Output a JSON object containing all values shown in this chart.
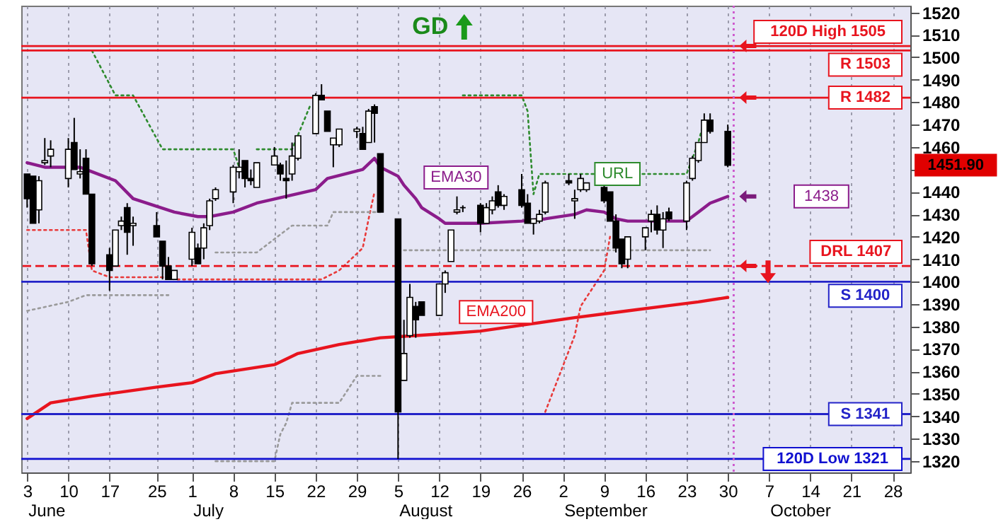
{
  "chart_data": {
    "type": "candlestick",
    "title": "GD",
    "x": [
      "--06-03",
      "--06-04",
      "--06-05",
      "--06-06",
      "--06-07",
      "--06-10",
      "--06-11",
      "--06-12",
      "--06-13",
      "--06-14",
      "--06-17",
      "--06-18",
      "--06-19",
      "--06-20",
      "--06-21",
      "--06-25",
      "--06-26",
      "--06-27",
      "--06-28",
      "--07-01",
      "--07-02",
      "--07-03",
      "--07-04",
      "--07-05",
      "--07-08",
      "--07-09",
      "--07-10",
      "--07-11",
      "--07-12",
      "--07-15",
      "--07-16",
      "--07-17",
      "--07-18",
      "--07-19",
      "--07-22",
      "--07-23",
      "--07-24",
      "--07-25",
      "--07-26",
      "--07-29",
      "--07-30",
      "--07-31",
      "--08-01",
      "--08-02",
      "--08-05",
      "--08-06",
      "--08-07",
      "--08-08",
      "--08-09",
      "--08-12",
      "--08-13",
      "--08-14",
      "--08-15",
      "--08-16",
      "--08-19",
      "--08-20",
      "--08-21",
      "--08-22",
      "--08-23",
      "--08-26",
      "--08-27",
      "--08-28",
      "--08-29",
      "--08-30",
      "--09-03",
      "--09-04",
      "--09-05",
      "--09-06",
      "--09-09",
      "--09-10",
      "--09-11",
      "--09-12",
      "--09-13",
      "--09-16",
      "--09-17",
      "--09-18",
      "--09-19",
      "--09-20",
      "--09-23",
      "--09-24",
      "--09-25",
      "--09-26",
      "--09-27",
      "--09-30"
    ],
    "ohlc": [
      [
        1448,
        1448,
        1433,
        1437
      ],
      [
        1447,
        1447,
        1426,
        1426
      ],
      [
        1432,
        1447,
        1426,
        1445
      ],
      [
        1453,
        1464,
        1452,
        1454
      ],
      [
        1456,
        1463,
        1451,
        1459
      ],
      [
        1446,
        1464,
        1442,
        1459
      ],
      [
        1462,
        1473,
        1450,
        1450
      ],
      [
        1448,
        1459,
        1446,
        1449
      ],
      [
        1455,
        1459,
        1439,
        1439
      ],
      [
        1439,
        1439,
        1407,
        1408
      ],
      [
        1412,
        1415,
        1396,
        1405
      ],
      [
        1407,
        1423,
        1407,
        1423
      ],
      [
        1425,
        1429,
        1423,
        1427
      ],
      [
        1433,
        1435,
        1412,
        1422
      ],
      [
        1425,
        1429,
        1416,
        1426
      ],
      [
        1425,
        1431,
        1420,
        1420
      ],
      [
        1418,
        1418,
        1401,
        1407
      ],
      [
        1407,
        1411,
        1401,
        1401
      ],
      [
        1401,
        1405,
        1401,
        1405
      ],
      [
        1410,
        1424,
        1407,
        1422
      ],
      [
        1415,
        1417,
        1408,
        1408
      ],
      [
        1415,
        1426,
        1410,
        1424
      ],
      [
        1425,
        1437,
        1423,
        1436
      ],
      [
        1437,
        1442,
        1436,
        1441
      ],
      [
        1440,
        1452,
        1435,
        1451
      ],
      [
        1449,
        1459,
        1446,
        1451
      ],
      [
        1454,
        1454,
        1442,
        1446
      ],
      [
        1446,
        1450,
        1443,
        1445
      ],
      [
        1442,
        1453,
        1442,
        1453
      ],
      [
        1452,
        1460,
        1452,
        1456
      ],
      [
        1452,
        1453,
        1445,
        1448
      ],
      [
        1446,
        1454,
        1437,
        1445
      ],
      [
        1448,
        1462,
        1445,
        1456
      ],
      [
        1455,
        1465,
        1454,
        1465
      ],
      [
        1466,
        1484,
        1466,
        1483
      ],
      [
        1483,
        1488,
        1481,
        1481
      ],
      [
        1476,
        1476,
        1467,
        1467
      ],
      [
        1461,
        1464,
        1451,
        1464
      ],
      [
        1461,
        1468,
        1460,
        1468
      ],
      [
        1467,
        1469,
        1464,
        1468
      ],
      [
        1466,
        1469,
        1459,
        1459
      ],
      [
        1462,
        1477,
        1462,
        1476
      ],
      [
        1478,
        1479,
        1462,
        1475
      ],
      [
        1457,
        1457,
        1431,
        1431
      ],
      [
        1428,
        1428,
        1321,
        1342
      ],
      [
        1356,
        1383,
        1356,
        1368
      ],
      [
        1376,
        1399,
        1375,
        1393
      ],
      [
        1389,
        1391,
        1375,
        1383
      ],
      [
        1391,
        1391,
        1385,
        1385
      ],
      [
        1385,
        1399,
        1385,
        1399
      ],
      [
        1399,
        1405,
        1395,
        1404
      ],
      [
        1409,
        1423,
        1409,
        1423
      ],
      [
        1431,
        1438,
        1430,
        1432
      ],
      [
        1433,
        1434,
        1431,
        1433
      ],
      [
        1434,
        1435,
        1422,
        1426
      ],
      [
        1426,
        1435,
        1426,
        1433
      ],
      [
        1432,
        1438,
        1430,
        1436
      ],
      [
        1440,
        1443,
        1433,
        1434
      ],
      [
        1434,
        1439,
        1432,
        1438
      ],
      [
        1441,
        1448,
        1433,
        1434
      ],
      [
        1435,
        1439,
        1426,
        1426
      ],
      [
        1426,
        1428,
        1421,
        1428
      ],
      [
        1427,
        1432,
        1426,
        1430
      ],
      [
        1431,
        1445,
        1430,
        1444
      ],
      [
        1445,
        1448,
        1443,
        1444
      ],
      [
        1436,
        1441,
        1428,
        1437
      ],
      [
        1441,
        1448,
        1440,
        1446
      ],
      [
        1441,
        1444,
        1440,
        1444
      ],
      [
        1442,
        1444,
        1435,
        1436
      ],
      [
        1440,
        1440,
        1427,
        1427
      ],
      [
        1427,
        1430,
        1413,
        1415
      ],
      [
        1419,
        1419,
        1406,
        1408
      ],
      [
        1410,
        1420,
        1406,
        1420
      ],
      [
        1420,
        1424,
        1414,
        1424
      ],
      [
        1427,
        1432,
        1422,
        1430
      ],
      [
        1430,
        1434,
        1421,
        1423
      ],
      [
        1423,
        1431,
        1415,
        1428
      ],
      [
        1431,
        1433,
        1427,
        1428
      ],
      [
        1427,
        1445,
        1423,
        1444
      ],
      [
        1446,
        1456,
        1445,
        1455
      ],
      [
        1454,
        1462,
        1453,
        1462
      ],
      [
        1462,
        1475,
        1462,
        1472
      ],
      [
        1472,
        1475,
        1466,
        1467
      ],
      [
        1467,
        1470,
        1451,
        1451.9
      ]
    ],
    "series": [
      {
        "type": "line",
        "name": "EMA30",
        "color": "#8b1c8b",
        "x": [
          "--06-03",
          "--06-06",
          "--06-12",
          "--06-13",
          "--06-18",
          "--06-21",
          "--06-28",
          "--07-02",
          "--07-04",
          "--07-08",
          "--07-12",
          "--07-17",
          "--07-22",
          "--07-24",
          "--07-30",
          "--08-01",
          "--08-02",
          "--08-05",
          "--08-06",
          "--08-07",
          "--08-08",
          "--08-09",
          "--08-12",
          "--08-13",
          "--08-19",
          "--08-26",
          "--08-30",
          "--09-04",
          "--09-06",
          "--09-09",
          "--09-11",
          "--09-13",
          "--09-17",
          "--09-20",
          "--09-23",
          "--09-25",
          "--09-27",
          "--09-30"
        ],
        "values": [
          1453,
          1451,
          1451,
          1450,
          1445,
          1437,
          1431,
          1429,
          1429,
          1431,
          1435,
          1438,
          1441,
          1446,
          1450,
          1455,
          1451,
          1447,
          1443,
          1440,
          1437,
          1433,
          1428,
          1426,
          1426,
          1427,
          1428,
          1430,
          1432,
          1431,
          1428,
          1427,
          1427,
          1427,
          1427,
          1431,
          1435,
          1438
        ]
      },
      {
        "type": "line",
        "name": "EMA200",
        "color": "#e8141e",
        "x": [
          "--06-03",
          "--06-07",
          "--06-14",
          "--06-25",
          "--07-01",
          "--07-05",
          "--07-15",
          "--07-19",
          "--07-26",
          "--08-02",
          "--08-08",
          "--08-14",
          "--08-19",
          "--08-27",
          "--09-04",
          "--09-10",
          "--09-13",
          "--09-19",
          "--09-25",
          "--09-30"
        ],
        "values": [
          1339,
          1346,
          1349,
          1353,
          1355,
          1359,
          1363,
          1368,
          1372,
          1375,
          1376,
          1377,
          1378,
          1381,
          1384,
          1386,
          1387,
          1389,
          1391,
          1393
        ]
      },
      {
        "type": "line",
        "name": "URL",
        "color": "#2e8b2e",
        "line_style": "dotted",
        "x": [
          "--08-16",
          "--08-26",
          "--08-27",
          "--08-28",
          "--08-29",
          "--09-17",
          "--09-23",
          "--09-24",
          "--09-25",
          "--09-26"
        ],
        "values": [
          1483,
          1483,
          1476,
          1439,
          1448,
          1448,
          1448,
          1455,
          1462,
          1472
        ]
      },
      {
        "type": "line",
        "color": "#2e8b2e",
        "line_style": "dotted",
        "x": [
          "--06-14",
          "--06-18",
          "--06-21",
          "--06-26",
          "--07-08",
          "--07-09"
        ],
        "values": [
          1503,
          1483,
          1483,
          1459,
          1459,
          1451
        ]
      },
      {
        "type": "line",
        "color": "#2e8b2e",
        "line_style": "dotted",
        "x": [
          "--07-12",
          "--07-18",
          "--07-21"
        ],
        "values": [
          1459,
          1459,
          1478
        ]
      },
      {
        "type": "line",
        "color": "#e83a3a",
        "line_style": "dotted",
        "x": [
          "--06-03",
          "--06-13",
          "--06-14",
          "--06-17",
          "--06-27",
          "--06-28",
          "--07-23",
          "--07-26",
          "--07-30",
          "--07-31",
          "--08-01"
        ],
        "values": [
          1423,
          1423,
          1405,
          1402,
          1402,
          1401,
          1401,
          1405,
          1415,
          1428,
          1440
        ]
      },
      {
        "type": "line",
        "color": "#e83a3a",
        "line_style": "dotted",
        "x": [
          "--08-30",
          "--09-04",
          "--09-05",
          "--09-09",
          "--09-10"
        ],
        "values": [
          1342,
          1376,
          1389,
          1405,
          1420
        ]
      },
      {
        "type": "line",
        "color": "#9a9a9a",
        "line_style": "dotted",
        "x": [
          "--06-03",
          "--06-10",
          "--06-13",
          "--06-27"
        ],
        "values": [
          1387,
          1391,
          1394,
          1394
        ]
      },
      {
        "type": "line",
        "color": "#9a9a9a",
        "line_style": "dotted",
        "x": [
          "--07-05",
          "--07-12",
          "--07-15",
          "--07-18",
          "--07-24",
          "--07-25",
          "--08-02"
        ],
        "values": [
          1413,
          1413,
          1419,
          1425,
          1425,
          1431,
          1431
        ]
      },
      {
        "type": "line",
        "color": "#9a9a9a",
        "line_style": "dotted",
        "x": [
          "--08-06",
          "--09-27"
        ],
        "values": [
          1414,
          1414
        ]
      },
      {
        "type": "line",
        "color": "#9a9a9a",
        "line_style": "dotted",
        "x": [
          "--07-05",
          "--07-15",
          "--07-16",
          "--07-17",
          "--07-18",
          "--07-26",
          "--07-29",
          "--08-02"
        ],
        "values": [
          1320,
          1320,
          1332,
          1337,
          1346,
          1346,
          1358,
          1358
        ]
      }
    ],
    "ref_lines": [
      {
        "axis": "y",
        "value": 1505,
        "label": "120D High 1505",
        "color": "#e8141e"
      },
      {
        "axis": "y",
        "value": 1503,
        "label": "R 1503",
        "color": "#e8141e"
      },
      {
        "axis": "y",
        "value": 1482,
        "label": "R 1482",
        "color": "#e8141e"
      },
      {
        "axis": "y",
        "value": 1407,
        "label": "DRL 1407",
        "color": "#e8141e",
        "line_style": "dashed"
      },
      {
        "axis": "y",
        "value": 1400,
        "label": "S 1400",
        "color": "#2323c8"
      },
      {
        "axis": "y",
        "value": 1341,
        "label": "S 1341",
        "color": "#2323c8"
      },
      {
        "axis": "y",
        "value": 1321,
        "label": "120D Low 1321",
        "color": "#1010d0"
      },
      {
        "axis": "x",
        "value": "--10-01",
        "color": "#cc55cc",
        "line_style": "dotted"
      }
    ],
    "annotations": [
      "1438",
      "1451.90",
      "June",
      "July",
      "August",
      "September",
      "October"
    ],
    "xlim": [
      "--06-02",
      "--10-31"
    ],
    "ylim": [
      1315,
      1523
    ],
    "xticks": [
      {
        "value": "--06-03",
        "label": "3"
      },
      {
        "value": "--06-10",
        "label": "10"
      },
      {
        "value": "--06-17",
        "label": "17"
      },
      {
        "value": "--06-25",
        "label": "25"
      },
      {
        "value": "--07-01",
        "label": "1"
      },
      {
        "value": "--07-08",
        "label": "8"
      },
      {
        "value": "--07-15",
        "label": "15"
      },
      {
        "value": "--07-22",
        "label": "22"
      },
      {
        "value": "--07-29",
        "label": "29"
      },
      {
        "value": "--08-05",
        "label": "5"
      },
      {
        "value": "--08-12",
        "label": "12"
      },
      {
        "value": "--08-19",
        "label": "19"
      },
      {
        "value": "--08-26",
        "label": "26"
      },
      {
        "value": "--09-02",
        "label": "2"
      },
      {
        "value": "--09-09",
        "label": "9"
      },
      {
        "value": "--09-16",
        "label": "16"
      },
      {
        "value": "--09-23",
        "label": "23"
      },
      {
        "value": "--09-30",
        "label": "30"
      },
      {
        "value": "--10-07",
        "label": "7"
      },
      {
        "value": "--10-14",
        "label": "14"
      },
      {
        "value": "--10-21",
        "label": "21"
      },
      {
        "value": "--10-28",
        "label": "28"
      }
    ],
    "yticks": [
      1320,
      1330,
      1340,
      1350,
      1360,
      1370,
      1380,
      1390,
      1400,
      1410,
      1420,
      1430,
      1440,
      {
        "value": 1450,
        "label": null
      },
      1460,
      1470,
      1480,
      1490,
      1500,
      1510,
      1520
    ],
    "grid": "x"
  }
}
